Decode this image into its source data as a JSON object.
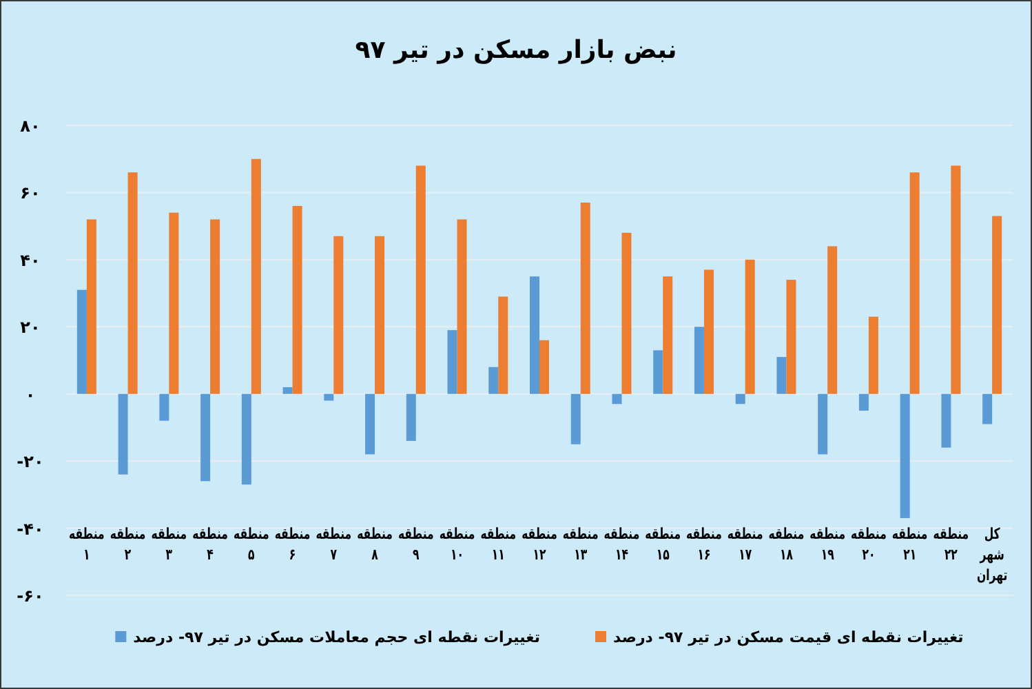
{
  "chart_data": {
    "type": "bar",
    "title": "نبض بازار مسکن در تیر ۹۷",
    "categories": [
      "منطقه ۱",
      "منطقه ۲",
      "منطقه ۳",
      "منطقه ۴",
      "منطقه ۵",
      "منطقه ۶",
      "منطقه ۷",
      "منطقه ۸",
      "منطقه ۹",
      "منطقه ۱۰",
      "منطقه ۱۱",
      "منطقه ۱۲",
      "منطقه ۱۳",
      "منطقه ۱۴",
      "منطقه ۱۵",
      "منطقه ۱۶",
      "منطقه ۱۷",
      "منطقه ۱۸",
      "منطقه ۱۹",
      "منطقه ۲۰",
      "منطقه ۲۱",
      "منطقه ۲۲",
      "کل شهر تهران"
    ],
    "series": [
      {
        "name": "تغییرات نقطه ای حجم معاملات مسکن در تیر ۹۷- درصد",
        "color": "#5b9bd5",
        "values": [
          31,
          -24,
          -8,
          -26,
          -27,
          2,
          -2,
          -18,
          -14,
          19,
          8,
          35,
          -15,
          -3,
          13,
          20,
          -3,
          11,
          -18,
          -5,
          -37,
          -16,
          -9
        ]
      },
      {
        "name": "تغییرات نقطه ای قیمت مسکن در تیر ۹۷- درصد",
        "color": "#ed7d31",
        "values": [
          52,
          66,
          54,
          52,
          70,
          56,
          47,
          47,
          68,
          52,
          29,
          16,
          57,
          48,
          35,
          37,
          40,
          34,
          44,
          23,
          66,
          68,
          53
        ]
      }
    ],
    "ylim": [
      -60,
      80
    ],
    "yticks": [
      {
        "value": -60,
        "label": "-۶۰"
      },
      {
        "value": -40,
        "label": "-۴۰"
      },
      {
        "value": -20,
        "label": "-۲۰"
      },
      {
        "value": 0,
        "label": "۰"
      },
      {
        "value": 20,
        "label": "۲۰"
      },
      {
        "value": 40,
        "label": "۴۰"
      },
      {
        "value": 60,
        "label": "۶۰"
      },
      {
        "value": 80,
        "label": "۸۰"
      }
    ],
    "grid": "y",
    "legend": "bottom"
  }
}
